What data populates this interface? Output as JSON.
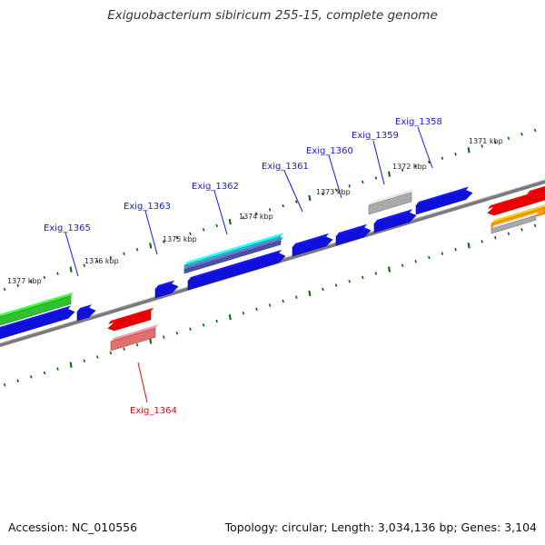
{
  "title": "Exiguobacterium sibiricum 255-15, complete genome",
  "footer": {
    "accession": "Accession: NC_010556",
    "stats": "Topology: circular; Length: 3,034,136 bp; Genes: 3,104"
  },
  "ticks": [
    "1371 kbp",
    "1372 kbp",
    "1373 kbp",
    "1374 kbp",
    "1375 kbp",
    "1376 kbp",
    "1377 kbp"
  ],
  "gene_labels": [
    {
      "name": "Exig_1358",
      "color": "#1a1acc"
    },
    {
      "name": "Exig_1359",
      "color": "#1a1acc"
    },
    {
      "name": "Exig_1360",
      "color": "#1a1acc"
    },
    {
      "name": "Exig_1361",
      "color": "#1a1acc"
    },
    {
      "name": "Exig_1362",
      "color": "#1a1acc"
    },
    {
      "name": "Exig_1363",
      "color": "#1a1acc"
    },
    {
      "name": "Exig_1365",
      "color": "#1a1acc"
    },
    {
      "name": "Exig_1364",
      "color": "#cc1111"
    }
  ],
  "colors": {
    "cds_forward": "#1010dd",
    "cds_reverse": "#ee0000",
    "rna": "#30c030",
    "pseudo": "#aaaaaa",
    "feature_orange": "#ff9900",
    "feature_pink": "#e07070",
    "feature_cyan": "#20c0c0",
    "backbone": "#808080",
    "tick": "#006600"
  }
}
